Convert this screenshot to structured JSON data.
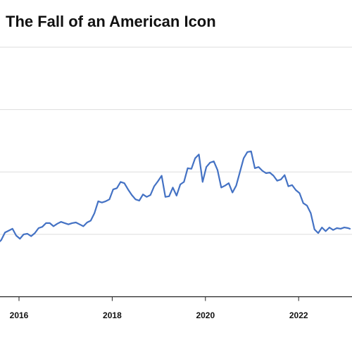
{
  "chart_data": {
    "type": "line",
    "title": "The Fall of an American Icon",
    "xlabel": "",
    "ylabel": "",
    "x_ticks": [
      {
        "value": 2016,
        "label": "2016"
      },
      {
        "value": 2018,
        "label": "2018"
      },
      {
        "value": 2020,
        "label": "2020"
      },
      {
        "value": 2022,
        "label": "2022"
      }
    ],
    "xlim": [
      2015.55,
      2023.1
    ],
    "ylim": [
      0,
      4
    ],
    "y_gridlines": [
      1,
      2,
      3
    ],
    "grid": true,
    "series": [
      {
        "color": "#4472c4",
        "points": [
          [
            2015.55,
            0.86
          ],
          [
            2015.62,
            0.91
          ],
          [
            2015.7,
            1.03
          ],
          [
            2015.78,
            1.06
          ],
          [
            2015.86,
            1.09
          ],
          [
            2015.94,
            0.98
          ],
          [
            2016.02,
            0.93
          ],
          [
            2016.1,
            1.0
          ],
          [
            2016.18,
            1.01
          ],
          [
            2016.26,
            0.97
          ],
          [
            2016.34,
            1.02
          ],
          [
            2016.42,
            1.1
          ],
          [
            2016.5,
            1.12
          ],
          [
            2016.58,
            1.18
          ],
          [
            2016.66,
            1.18
          ],
          [
            2016.74,
            1.13
          ],
          [
            2016.82,
            1.17
          ],
          [
            2016.9,
            1.2
          ],
          [
            2016.98,
            1.18
          ],
          [
            2017.06,
            1.16
          ],
          [
            2017.14,
            1.18
          ],
          [
            2017.22,
            1.19
          ],
          [
            2017.3,
            1.16
          ],
          [
            2017.38,
            1.13
          ],
          [
            2017.46,
            1.19
          ],
          [
            2017.54,
            1.22
          ],
          [
            2017.62,
            1.34
          ],
          [
            2017.7,
            1.53
          ],
          [
            2017.78,
            1.51
          ],
          [
            2017.86,
            1.53
          ],
          [
            2017.94,
            1.56
          ],
          [
            2018.02,
            1.72
          ],
          [
            2018.1,
            1.74
          ],
          [
            2018.18,
            1.84
          ],
          [
            2018.26,
            1.82
          ],
          [
            2018.34,
            1.72
          ],
          [
            2018.42,
            1.63
          ],
          [
            2018.5,
            1.56
          ],
          [
            2018.58,
            1.54
          ],
          [
            2018.66,
            1.64
          ],
          [
            2018.74,
            1.6
          ],
          [
            2018.82,
            1.63
          ],
          [
            2018.9,
            1.77
          ],
          [
            2018.98,
            1.85
          ],
          [
            2019.06,
            1.94
          ],
          [
            2019.14,
            1.6
          ],
          [
            2019.22,
            1.61
          ],
          [
            2019.3,
            1.75
          ],
          [
            2019.38,
            1.62
          ],
          [
            2019.46,
            1.8
          ],
          [
            2019.54,
            1.84
          ],
          [
            2019.62,
            2.06
          ],
          [
            2019.7,
            2.05
          ],
          [
            2019.78,
            2.22
          ],
          [
            2019.86,
            2.28
          ],
          [
            2019.94,
            1.84
          ],
          [
            2020.02,
            2.08
          ],
          [
            2020.1,
            2.15
          ],
          [
            2020.18,
            2.17
          ],
          [
            2020.26,
            2.03
          ],
          [
            2020.34,
            1.75
          ],
          [
            2020.42,
            1.78
          ],
          [
            2020.5,
            1.82
          ],
          [
            2020.58,
            1.67
          ],
          [
            2020.66,
            1.78
          ],
          [
            2020.74,
            2.0
          ],
          [
            2020.82,
            2.22
          ],
          [
            2020.9,
            2.32
          ],
          [
            2020.98,
            2.33
          ],
          [
            2021.06,
            2.06
          ],
          [
            2021.14,
            2.08
          ],
          [
            2021.22,
            2.02
          ],
          [
            2021.3,
            1.98
          ],
          [
            2021.38,
            1.99
          ],
          [
            2021.46,
            1.94
          ],
          [
            2021.54,
            1.86
          ],
          [
            2021.62,
            1.88
          ],
          [
            2021.7,
            1.95
          ],
          [
            2021.78,
            1.77
          ],
          [
            2021.86,
            1.79
          ],
          [
            2021.94,
            1.71
          ],
          [
            2022.02,
            1.66
          ],
          [
            2022.1,
            1.5
          ],
          [
            2022.18,
            1.46
          ],
          [
            2022.26,
            1.34
          ],
          [
            2022.34,
            1.08
          ],
          [
            2022.42,
            1.02
          ],
          [
            2022.5,
            1.11
          ],
          [
            2022.58,
            1.05
          ],
          [
            2022.66,
            1.11
          ],
          [
            2022.74,
            1.07
          ],
          [
            2022.82,
            1.1
          ],
          [
            2022.9,
            1.09
          ],
          [
            2022.98,
            1.11
          ],
          [
            2023.06,
            1.1
          ],
          [
            2023.1,
            1.09
          ]
        ]
      }
    ]
  }
}
